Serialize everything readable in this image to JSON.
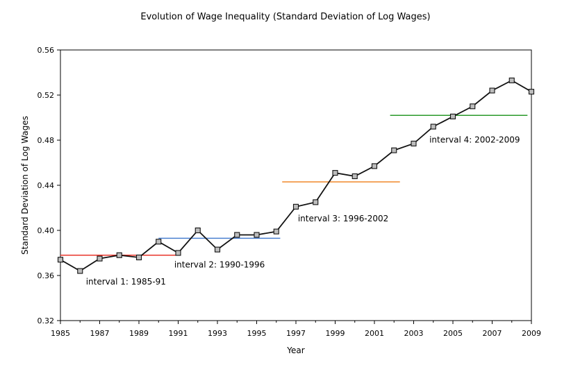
{
  "chart_data": {
    "type": "line",
    "title": "Evolution of Wage Inequality (Standard Deviation of Log Wages)",
    "xlabel": "Year",
    "ylabel": "Standard Deviation of Log Wages",
    "xlim": [
      1985,
      2009
    ],
    "ylim": [
      0.32,
      0.56
    ],
    "x_ticks": [
      1985,
      1987,
      1989,
      1991,
      1993,
      1995,
      1997,
      1999,
      2001,
      2003,
      2005,
      2007,
      2009
    ],
    "y_ticks": [
      0.32,
      0.36,
      0.4,
      0.44,
      0.48,
      0.52,
      0.56
    ],
    "y_tick_labels": [
      "0.32",
      "0.36",
      "0.40",
      "0.44",
      "0.48",
      "0.52",
      "0.56"
    ],
    "x": [
      1985,
      1986,
      1987,
      1988,
      1989,
      1990,
      1991,
      1992,
      1993,
      1994,
      1995,
      1996,
      1997,
      1998,
      1999,
      2000,
      2001,
      2002,
      2003,
      2004,
      2005,
      2006,
      2007,
      2008,
      2009
    ],
    "series": [
      {
        "values": [
          0.374,
          0.364,
          0.375,
          0.378,
          0.376,
          0.39,
          0.38,
          0.4,
          0.383,
          0.396,
          0.396,
          0.399,
          0.421,
          0.425,
          0.451,
          0.448,
          0.457,
          0.471,
          0.477,
          0.492,
          0.501,
          0.51,
          0.524,
          0.533,
          0.523
        ],
        "color": "#111111"
      }
    ],
    "averages": [
      {
        "label": "interval 1: 1985-91",
        "x_start": 1985,
        "x_end": 1991,
        "value": 0.378,
        "color": "#e8342a"
      },
      {
        "label": "interval 2: 1990-1996",
        "x_start": 1990,
        "x_end": 1996.2,
        "value": 0.393,
        "color": "#4a7fd0"
      },
      {
        "label": "interval 3: 1996-2002",
        "x_start": 1996.3,
        "x_end": 2002.3,
        "value": 0.443,
        "color": "#f0882a"
      },
      {
        "label": "interval 4: 2002-2009",
        "x_start": 2001.8,
        "x_end": 2008.8,
        "value": 0.502,
        "color": "#2a9a2a"
      }
    ],
    "grid": false,
    "legend": "none"
  }
}
